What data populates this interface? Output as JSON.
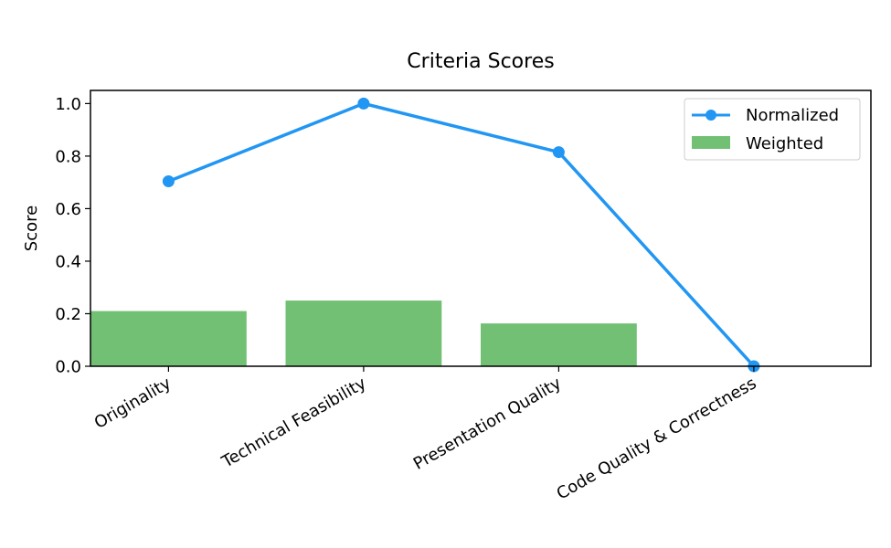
{
  "chart_data": {
    "type": "bar",
    "title": "Criteria Scores",
    "xlabel": "",
    "ylabel": "Score",
    "categories": [
      "Originality",
      "Technical Feasibility",
      "Presentation Quality",
      "Code Quality & Correctness"
    ],
    "series": [
      {
        "name": "Weighted",
        "type": "bar",
        "values": [
          0.21,
          0.25,
          0.163,
          0.0
        ],
        "color": "#72c073"
      },
      {
        "name": "Normalized",
        "type": "line",
        "values": [
          0.704,
          1.0,
          0.815,
          0.0
        ],
        "color": "#2196f3"
      }
    ],
    "ylim": [
      0,
      1.05
    ],
    "yticks": [
      0.0,
      0.2,
      0.4,
      0.6,
      0.8,
      1.0
    ],
    "ytick_labels": [
      "0.0",
      "0.2",
      "0.4",
      "0.6",
      "0.8",
      "1.0"
    ],
    "grid": false,
    "legend": "top-right",
    "legend_entries": [
      "Normalized",
      "Weighted"
    ]
  }
}
